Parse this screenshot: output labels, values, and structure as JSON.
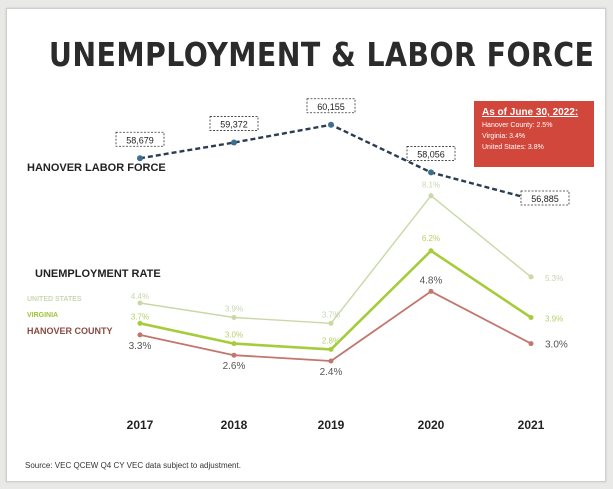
{
  "title": "UNEMPLOYMENT & LABOR FORCE",
  "asof": {
    "heading": "As of June 30, 2022:",
    "lines": [
      "Hanover County: 2.5%",
      "Virginia: 3.4%",
      "United States: 3.8%"
    ]
  },
  "labor_label": "HANOVER LABOR FORCE",
  "unemp_label": "UNEMPLOYMENT RATE",
  "source": "Source: VEC QCEW Q4 CY VEC data subject to adjustment.",
  "colors": {
    "us": "#c9d8a6",
    "va": "#a6cc3c",
    "hanover": "#c2766c",
    "labor": "#2b3d52",
    "box": "#d2473b"
  },
  "chart_data": [
    {
      "type": "line",
      "name": "labor-force",
      "categories": [
        "2017",
        "2018",
        "2019",
        "2020",
        "2021"
      ],
      "series": [
        {
          "name": "HANOVER LABOR FORCE",
          "values": [
            58679,
            59372,
            60155,
            58056,
            56885
          ],
          "labels": [
            "58,679",
            "59,372",
            "60,155",
            "58,056",
            "56,885"
          ]
        }
      ]
    },
    {
      "type": "line",
      "name": "unemployment-rate",
      "categories": [
        "2017",
        "2018",
        "2019",
        "2020",
        "2021"
      ],
      "series": [
        {
          "name": "UNITED STATES",
          "values": [
            4.4,
            3.9,
            3.7,
            8.1,
            5.3
          ],
          "labels": [
            "4.4%",
            "3.9%",
            "3.7%",
            "8.1%",
            "5.3%"
          ]
        },
        {
          "name": "VIRGINIA",
          "values": [
            3.7,
            3.0,
            2.8,
            6.2,
            3.9
          ],
          "labels": [
            "3.7%",
            "3.0%",
            "2.8%",
            "6.2%",
            "3.9%"
          ]
        },
        {
          "name": "HANOVER COUNTY",
          "values": [
            3.3,
            2.6,
            2.4,
            4.8,
            3.0
          ],
          "labels": [
            "3.3%",
            "2.6%",
            "2.4%",
            "4.8%",
            "3.0%"
          ]
        }
      ]
    }
  ]
}
